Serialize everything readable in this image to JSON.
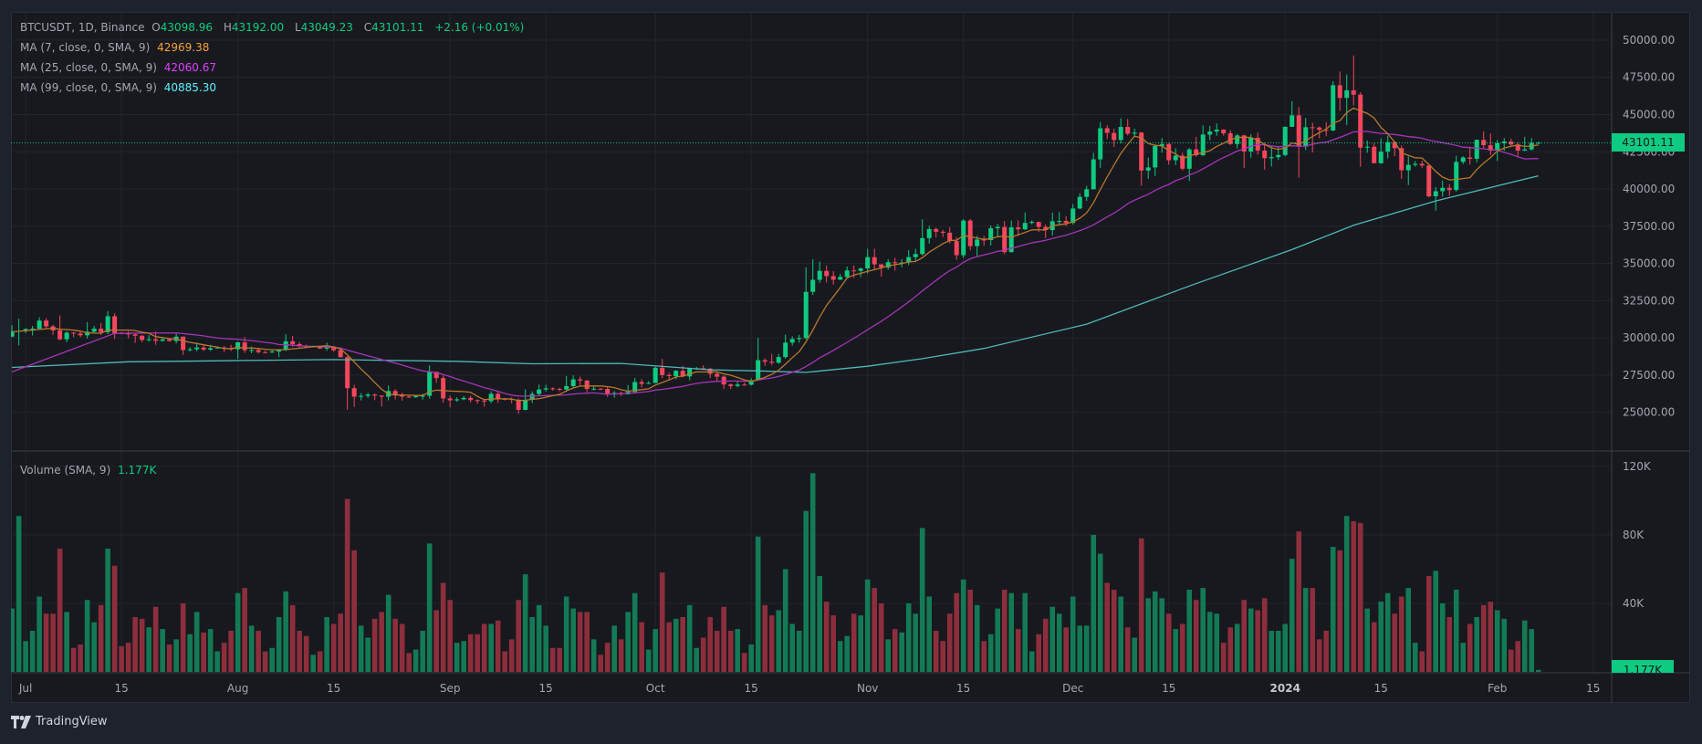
{
  "legend": {
    "symbol": "BTCUSDT, 1D, Binance",
    "o_label": "O",
    "o": "43098.96",
    "h_label": "H",
    "h": "43192.00",
    "l_label": "L",
    "l": "43049.23",
    "c_label": "C",
    "c": "43101.11",
    "change": "+2.16 (+0.01%)",
    "ma7_label": "MA (7, close, 0, SMA, 9)",
    "ma7_value": "42969.38",
    "ma25_label": "MA (25, close, 0, SMA, 9)",
    "ma25_value": "42060.67",
    "ma99_label": "MA (99, close, 0, SMA, 9)",
    "ma99_value": "40885.30",
    "volume_label": "Volume (SMA, 9)",
    "volume_value": "1.177K"
  },
  "last_price_label": "43101.11",
  "last_volume_label": "1.177K",
  "logo_text": "TradingView",
  "colors": {
    "up": "#0ecb81",
    "down": "#f6465d",
    "vol_up": "#137a55",
    "vol_down": "#8d2e3d",
    "ma7": "#b9782c",
    "ma25": "#a634b8",
    "ma99": "#4fb8bb",
    "ma7_legend": "#f7a23b",
    "ma25_legend": "#e040fb",
    "ma99_legend": "#5ef0ff",
    "grid": "#22252c"
  },
  "chart_data": {
    "type": "candlestick",
    "title": "BTCUSDT, 1D, Binance",
    "first_date": "2023-06-29",
    "last_date": "2024-02-07",
    "xlim": [
      -0.15,
      233.7
    ],
    "x_ticks": [
      {
        "index": 2,
        "label": "Jul"
      },
      {
        "index": 16,
        "label": "15"
      },
      {
        "index": 33,
        "label": "Aug"
      },
      {
        "index": 47,
        "label": "15"
      },
      {
        "index": 64,
        "label": "Sep"
      },
      {
        "index": 78,
        "label": "15"
      },
      {
        "index": 94,
        "label": "Oct"
      },
      {
        "index": 108,
        "label": "15"
      },
      {
        "index": 125,
        "label": "Nov"
      },
      {
        "index": 139,
        "label": "15"
      },
      {
        "index": 155,
        "label": "Dec"
      },
      {
        "index": 169,
        "label": "15"
      },
      {
        "index": 186,
        "label": "2024",
        "bold": true
      },
      {
        "index": 200,
        "label": "15"
      },
      {
        "index": 217,
        "label": "Feb"
      },
      {
        "index": 231,
        "label": "15"
      }
    ],
    "price_axis": {
      "ylim": [
        22400,
        51900
      ],
      "ticks": [
        50000,
        47500,
        45000,
        42500,
        40000,
        37500,
        35000,
        32500,
        30000,
        27500,
        25000
      ],
      "tick_labels": [
        "50000.00",
        "47500.00",
        "45000.00",
        "42500.00",
        "40000.00",
        "37500.00",
        "35000.00",
        "32500.00",
        "30000.00",
        "27500.00",
        "25000.00"
      ],
      "last_price": 43101.11
    },
    "volume_axis": {
      "ylim": [
        0,
        129
      ],
      "unit": "K",
      "ticks": [
        120,
        80,
        40
      ],
      "tick_labels": [
        "120K",
        "80K",
        "40K"
      ]
    },
    "first_open": 30080,
    "close": [
      30450,
      30470,
      30590,
      30620,
      31160,
      30770,
      30500,
      29900,
      30350,
      30290,
      30170,
      30410,
      30620,
      30380,
      31450,
      30310,
      30290,
      30230,
      30140,
      29860,
      29910,
      29800,
      29900,
      29790,
      30080,
      29180,
      29230,
      29350,
      29210,
      29310,
      29350,
      29280,
      29230,
      29700,
      29170,
      29180,
      29040,
      29030,
      29080,
      29180,
      29770,
      29580,
      29430,
      29400,
      29420,
      29280,
      29410,
      29170,
      28700,
      26620,
      26050,
      26100,
      26190,
      26120,
      26050,
      26430,
      26160,
      26050,
      26010,
      26090,
      26110,
      27720,
      27300,
      25930,
      25800,
      25870,
      25970,
      25820,
      25780,
      25750,
      26240,
      25900,
      25890,
      25840,
      25160,
      25840,
      26230,
      26530,
      26610,
      26570,
      26530,
      26760,
      27210,
      27130,
      26570,
      26580,
      26570,
      26250,
      26300,
      26220,
      26370,
      27030,
      26910,
      26970,
      27990,
      27500,
      27430,
      27790,
      27410,
      27930,
      27960,
      27930,
      27590,
      27390,
      26870,
      26760,
      26860,
      26850,
      27150,
      28500,
      28400,
      28330,
      28710,
      29680,
      29920,
      29990,
      33090,
      33900,
      34500,
      34150,
      33910,
      34090,
      34530,
      34500,
      34660,
      35420,
      34940,
      34730,
      35080,
      35050,
      35060,
      35420,
      35630,
      36700,
      37310,
      37130,
      37060,
      36500,
      35550,
      37880,
      36160,
      36600,
      36570,
      37360,
      37450,
      35760,
      37420,
      37290,
      37720,
      37790,
      37450,
      37240,
      37830,
      37850,
      37720,
      38690,
      39470,
      39980,
      41990,
      44080,
      43770,
      43290,
      44170,
      43720,
      43790,
      41240,
      41450,
      42890,
      43020,
      41930,
      42240,
      41360,
      42660,
      42270,
      43660,
      43860,
      43990,
      43740,
      43020,
      43600,
      42520,
      43440,
      42580,
      42070,
      42140,
      42280,
      44180,
      44950,
      42850,
      44150,
      44130,
      43970,
      43930,
      46970,
      46120,
      46630,
      46340,
      42780,
      42840,
      41730,
      42510,
      43150,
      42740,
      41260,
      41620,
      41690,
      41580,
      39510,
      39850,
      40080,
      39930,
      41820,
      42120,
      42030,
      43300,
      42940,
      42580,
      43080,
      43190,
      42990,
      42580,
      42660,
      43098.96,
      43101.11
    ],
    "high": [
      30850,
      31280,
      30650,
      30800,
      31380,
      31330,
      30880,
      31500,
      30450,
      30380,
      30440,
      31050,
      30800,
      30990,
      31800,
      31630,
      30390,
      30440,
      30340,
      30190,
      30190,
      30420,
      29990,
      29990,
      30350,
      30100,
      29380,
      29690,
      29570,
      29530,
      29410,
      29450,
      29530,
      29750,
      30050,
      29410,
      29310,
      29140,
      29230,
      29250,
      30250,
      30130,
      29720,
      29540,
      29480,
      29450,
      29680,
      29460,
      29240,
      28780,
      26840,
      26280,
      26300,
      26260,
      26140,
      26800,
      26560,
      26320,
      26130,
      26180,
      26250,
      28150,
      27580,
      27480,
      26130,
      26000,
      26100,
      26120,
      25860,
      25880,
      26420,
      26460,
      25950,
      26000,
      25930,
      26540,
      26400,
      26860,
      26850,
      26670,
      26650,
      27430,
      27490,
      27400,
      27170,
      26740,
      26620,
      26720,
      26430,
      26390,
      26830,
      27310,
      27220,
      27090,
      28060,
      28580,
      27660,
      27830,
      28120,
      28000,
      28050,
      28150,
      27990,
      27730,
      27480,
      26940,
      27100,
      26990,
      27290,
      30000,
      28620,
      28930,
      28920,
      30220,
      30100,
      30200,
      34740,
      35280,
      35130,
      34850,
      34480,
      34300,
      34790,
      34850,
      34720,
      35980,
      35980,
      34930,
      35280,
      35380,
      35280,
      35890,
      35980,
      37970,
      37530,
      37420,
      37250,
      37430,
      36770,
      37980,
      37980,
      36850,
      36850,
      37540,
      37650,
      37850,
      37880,
      37900,
      38430,
      37900,
      37820,
      37620,
      38410,
      38440,
      38170,
      38980,
      39710,
      40200,
      42420,
      44490,
      44300,
      44040,
      44750,
      44710,
      44050,
      43830,
      42110,
      43000,
      43430,
      43090,
      42740,
      42440,
      42750,
      43500,
      44280,
      44240,
      44400,
      44020,
      43950,
      43700,
      43650,
      43680,
      43800,
      43120,
      42900,
      42900,
      44190,
      45900,
      45500,
      44770,
      44450,
      44200,
      44490,
      47240,
      47890,
      47690,
      48970,
      46500,
      43260,
      43070,
      43400,
      43580,
      43200,
      42930,
      42190,
      41880,
      41900,
      41680,
      40130,
      40560,
      40320,
      42230,
      42200,
      42840,
      43330,
      43880,
      43740,
      43290,
      43420,
      43380,
      43120,
      43500,
      43420,
      43192
    ],
    "low": [
      30040,
      29500,
      30320,
      30160,
      30550,
      30630,
      30200,
      29850,
      29700,
      30050,
      30050,
      29950,
      30300,
      30200,
      30250,
      29920,
      30250,
      29980,
      29660,
      29700,
      29760,
      29530,
      29740,
      29750,
      29620,
      28860,
      29080,
      29100,
      29120,
      29120,
      29260,
      29040,
      29110,
      28590,
      28990,
      28960,
      28950,
      28960,
      28980,
      28700,
      29110,
      29400,
      29310,
      29350,
      29360,
      29260,
      29130,
      29060,
      28700,
      25170,
      25350,
      25800,
      25970,
      25810,
      25380,
      25800,
      25860,
      25780,
      25960,
      25970,
      25850,
      25920,
      26980,
      25650,
      25330,
      25700,
      25810,
      25650,
      25580,
      25370,
      25610,
      25640,
      25790,
      25600,
      24900,
      25130,
      25620,
      26130,
      26390,
      26450,
      26410,
      26380,
      26670,
      26830,
      26350,
      26460,
      26500,
      26030,
      25990,
      26080,
      26170,
      26300,
      26660,
      26900,
      26950,
      27290,
      27160,
      27210,
      27340,
      27150,
      27850,
      27840,
      27300,
      27120,
      26560,
      26560,
      26680,
      26800,
      26800,
      27110,
      28120,
      28170,
      28250,
      28600,
      29470,
      29670,
      29880,
      32890,
      33700,
      33720,
      33580,
      33880,
      34050,
      34020,
      34080,
      34320,
      34580,
      34110,
      34580,
      34520,
      34740,
      34880,
      35110,
      35530,
      36330,
      36750,
      36770,
      36340,
      35250,
      35360,
      35880,
      35500,
      36180,
      36200,
      36800,
      35630,
      35730,
      36850,
      37250,
      37620,
      37120,
      36700,
      36870,
      37600,
      37500,
      37620,
      38650,
      39200,
      39980,
      41420,
      43360,
      42820,
      43080,
      43600,
      43560,
      40220,
      40680,
      40880,
      42440,
      41640,
      41600,
      41250,
      40530,
      42170,
      42220,
      43280,
      43580,
      43580,
      42960,
      42720,
      41400,
      42100,
      42300,
      41300,
      41520,
      41960,
      42190,
      44170,
      40750,
      42620,
      42450,
      43400,
      43550,
      43880,
      45240,
      44300,
      45620,
      41500,
      42430,
      41720,
      41700,
      42050,
      42200,
      40680,
      40260,
      41500,
      41420,
      39430,
      38550,
      39490,
      39550,
      39830,
      41670,
      41640,
      41800,
      42680,
      42280,
      41880,
      42560,
      42880,
      42220,
      42550,
      42580,
      43049.23
    ],
    "volume_k": [
      37,
      91,
      18,
      24,
      44,
      34,
      34,
      72,
      35,
      14,
      16,
      42,
      29,
      39,
      72,
      62,
      15,
      17,
      32,
      31,
      26,
      38,
      25,
      16,
      19,
      40,
      22,
      35,
      23,
      25,
      12,
      17,
      24,
      46,
      49,
      27,
      24,
      12,
      14,
      32,
      47,
      39,
      24,
      21,
      10,
      12,
      32,
      28,
      34,
      101,
      71,
      27,
      20,
      31,
      35,
      45,
      31,
      28,
      11,
      13,
      24,
      75,
      36,
      52,
      42,
      17,
      18,
      22,
      22,
      28,
      28,
      30,
      12,
      19,
      42,
      57,
      32,
      39,
      27,
      14,
      14,
      44,
      37,
      35,
      35,
      19,
      10,
      17,
      27,
      19,
      35,
      46,
      29,
      13,
      25,
      58,
      29,
      31,
      32,
      39,
      14,
      20,
      32,
      24,
      38,
      24,
      25,
      11,
      16,
      79,
      39,
      33,
      36,
      60,
      28,
      24,
      94,
      116,
      56,
      41,
      33,
      18,
      21,
      34,
      33,
      54,
      49,
      40,
      19,
      25,
      23,
      40,
      34,
      84,
      44,
      24,
      18,
      34,
      46,
      54,
      48,
      39,
      18,
      22,
      37,
      48,
      46,
      25,
      46,
      12,
      22,
      31,
      38,
      34,
      26,
      44,
      27,
      27,
      80,
      69,
      52,
      48,
      44,
      26,
      20,
      78,
      43,
      47,
      43,
      34,
      25,
      28,
      48,
      42,
      49,
      35,
      34,
      17,
      26,
      28,
      42,
      37,
      36,
      43,
      24,
      24,
      28,
      66,
      82,
      49,
      49,
      19,
      24,
      73,
      71,
      91,
      88,
      87,
      37,
      29,
      41,
      46,
      34,
      44,
      49,
      17,
      12,
      56,
      59,
      40,
      32,
      48,
      17,
      28,
      32,
      39,
      41,
      36,
      31,
      13,
      18,
      30,
      25,
      1.177
    ],
    "ma7_head": [
      [
        0,
        30400
      ]
    ],
    "ma25_head": [
      [
        0,
        27710
      ],
      [
        15,
        30300
      ]
    ],
    "ma99_points": [
      [
        0,
        28010
      ],
      [
        17,
        28390
      ],
      [
        34,
        28480
      ],
      [
        47,
        28540
      ],
      [
        65,
        28420
      ],
      [
        76,
        28260
      ],
      [
        89,
        28280
      ],
      [
        102,
        27850
      ],
      [
        109,
        27780
      ],
      [
        116,
        27680
      ],
      [
        125,
        28090
      ],
      [
        133,
        28600
      ],
      [
        142,
        29290
      ],
      [
        157,
        30920
      ],
      [
        172,
        33480
      ],
      [
        187,
        35930
      ],
      [
        196,
        37560
      ],
      [
        208,
        39200
      ],
      [
        223,
        40885.3
      ]
    ]
  }
}
